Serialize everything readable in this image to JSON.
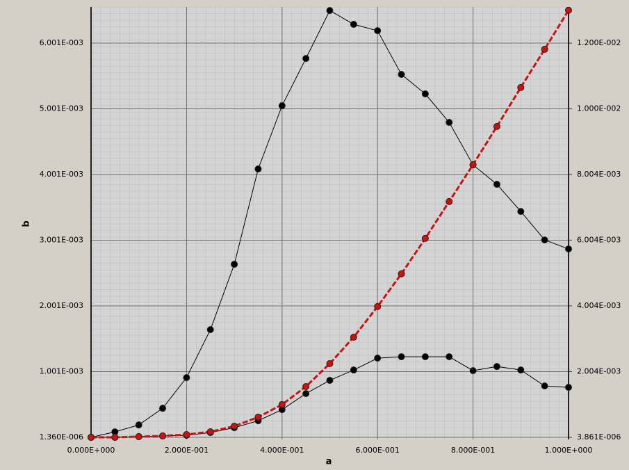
{
  "chart_data": {
    "type": "line",
    "x_label": "a",
    "y_label": "b",
    "x": [
      0,
      0.05,
      0.1,
      0.15,
      0.2,
      0.25,
      0.3,
      0.35,
      0.4,
      0.45,
      0.5,
      0.55,
      0.6,
      0.65,
      0.7,
      0.75,
      0.8,
      0.85,
      0.9,
      0.95,
      1.0
    ],
    "xlim": [
      0,
      1
    ],
    "xticks": [
      {
        "value": 0,
        "label": "0.000E+000"
      },
      {
        "value": 0.2,
        "label": "2.000E-001"
      },
      {
        "value": 0.4,
        "label": "4.000E-001"
      },
      {
        "value": 0.6,
        "label": "6.000E-001"
      },
      {
        "value": 0.8,
        "label": "8.000E-001"
      },
      {
        "value": 1.0,
        "label": "1.000E+000"
      }
    ],
    "ylim": [
      1.36e-06,
      0.006551
    ],
    "yticks": [
      {
        "value": 1.36e-06,
        "label": "1.360E-006"
      },
      {
        "value": 0.001001,
        "label": "1.001E-003"
      },
      {
        "value": 0.002001,
        "label": "2.001E-003"
      },
      {
        "value": 0.003001,
        "label": "3.001E-003"
      },
      {
        "value": 0.004001,
        "label": "4.001E-003"
      },
      {
        "value": 0.005001,
        "label": "5.001E-003"
      },
      {
        "value": 0.006001,
        "label": "6.001E-003"
      }
    ],
    "y2lim": [
      3.861e-06,
      0.0131
    ],
    "y2ticks": [
      {
        "value": 3.861e-06,
        "label": "3.861E-006"
      },
      {
        "value": 0.002004,
        "label": "2.004E-003"
      },
      {
        "value": 0.004004,
        "label": "4.004E-003"
      },
      {
        "value": 0.006004,
        "label": "6.004E-003"
      },
      {
        "value": 0.008004,
        "label": "8.004E-003"
      },
      {
        "value": 0.01,
        "label": "1.000E-002"
      },
      {
        "value": 0.012,
        "label": "1.200E-002"
      }
    ],
    "grid": true,
    "series": [
      {
        "color": "#000000",
        "values": [
          1.36e-06,
          8.5e-05,
          0.00019,
          0.000444,
          0.00091,
          0.00164,
          0.002635,
          0.004085,
          0.005048,
          0.005767,
          0.006497,
          0.006286,
          0.00619,
          0.005524,
          0.005228,
          0.004794,
          0.004148,
          0.003852,
          0.003439,
          0.003005,
          0.002868
        ]
      },
      {
        "color": "#000000",
        "values": [
          1.36e-06,
          1.36e-06,
          1.2e-05,
          2.2e-05,
          3.2e-05,
          7.4e-05,
          0.000148,
          0.000254,
          0.000423,
          0.000667,
          0.000868,
          0.001026,
          0.001206,
          0.001228,
          0.001228,
          0.001228,
          0.001016,
          0.001079,
          0.001026,
          0.000783,
          0.000762
        ]
      },
      {
        "color": "#cc1111",
        "axis": "y2",
        "dashed": true,
        "values": [
          3.861e-06,
          3.861e-06,
          2.5e-05,
          4.6e-05,
          8.8e-05,
          0.000173,
          0.000343,
          0.000618,
          0.001,
          0.001549,
          0.002247,
          0.003051,
          0.003983,
          0.004978,
          0.006057,
          0.007178,
          0.0083,
          0.009464,
          0.010649,
          0.011813,
          0.012999
        ]
      }
    ]
  }
}
